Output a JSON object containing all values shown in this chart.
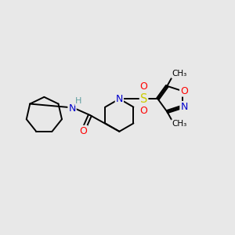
{
  "bg_color": "#e8e8e8",
  "atom_colors": {
    "C": "#000000",
    "N": "#0000cc",
    "O": "#ff0000",
    "S": "#cccc00",
    "H": "#5f9ea0"
  },
  "bond_color": "#000000",
  "bond_width": 1.4
}
